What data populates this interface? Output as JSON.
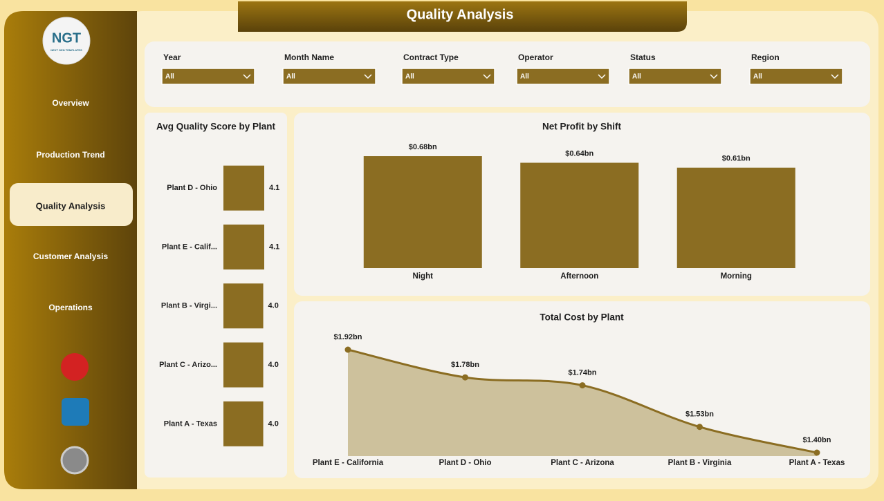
{
  "header": {
    "title": "Quality Analysis"
  },
  "logo": {
    "text": "NGT",
    "tagline": "NEXT GEN TEMPLATES"
  },
  "nav": {
    "items": [
      "Overview",
      "Production Trend",
      "Quality Analysis",
      "Customer Analysis",
      "Operations"
    ],
    "active": 2
  },
  "filters": [
    {
      "label": "Year",
      "value": "All"
    },
    {
      "label": "Month Name",
      "value": "All"
    },
    {
      "label": "Contract Type",
      "value": "All"
    },
    {
      "label": "Operator",
      "value": "All"
    },
    {
      "label": "Status",
      "value": "All"
    },
    {
      "label": "Region",
      "value": "All"
    }
  ],
  "chart_data": [
    {
      "type": "hbar",
      "title": "Avg Quality Score by Plant",
      "categories": [
        "Plant D - Ohio",
        "Plant E - Calif...",
        "Plant B - Virgi...",
        "Plant C - Arizo...",
        "Plant A - Texas"
      ],
      "values": [
        4.1,
        4.1,
        4.0,
        4.0,
        4.0
      ],
      "value_labels": [
        "4.1",
        "4.1",
        "4.0",
        "4.0",
        "4.0"
      ],
      "color": "#8b6d22"
    },
    {
      "type": "bar",
      "title": "Net Profit by Shift",
      "categories": [
        "Night",
        "Afternoon",
        "Morning"
      ],
      "values": [
        0.68,
        0.64,
        0.61
      ],
      "value_labels": [
        "$0.68bn",
        "$0.64bn",
        "$0.61bn"
      ],
      "color": "#8b6d22"
    },
    {
      "type": "area",
      "title": "Total Cost by Plant",
      "categories": [
        "Plant E - California",
        "Plant D - Ohio",
        "Plant C - Arizona",
        "Plant B - Virginia",
        "Plant A - Texas"
      ],
      "values": [
        1.92,
        1.78,
        1.74,
        1.53,
        1.4
      ],
      "value_labels": [
        "$1.92bn",
        "$1.78bn",
        "$1.74bn",
        "$1.53bn",
        "$1.40bn"
      ],
      "color": "#8b6d22",
      "fill": "#cdc19c"
    }
  ]
}
